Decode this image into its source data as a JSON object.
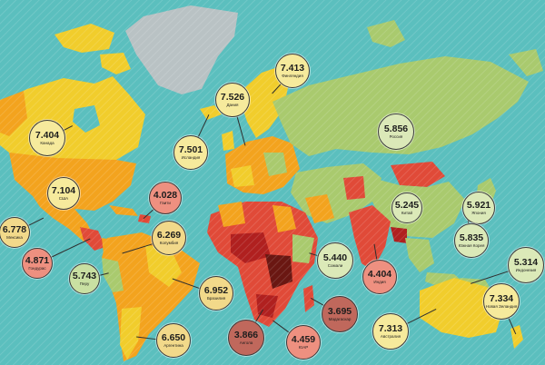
{
  "legend": {
    "title": "",
    "scale_min": 3.0,
    "scale_max": 7.6
  },
  "colors": {
    "ocean": "#5bbfbe",
    "greenland": "#b9c2c4",
    "happy_high": "#f1cd2c",
    "upper_mid": "#f3a31e",
    "mid": "#a9ca6e",
    "low_mid": "#e04a38",
    "low": "#b0201f",
    "lowest": "#6a1712"
  },
  "badges": [
    {
      "id": "canada",
      "value": "7.404",
      "label": "Канада",
      "fill": "#f6ea9c"
    },
    {
      "id": "usa",
      "value": "7.104",
      "label": "США",
      "fill": "#f6ea9c"
    },
    {
      "id": "mexico",
      "value": "6.778",
      "label": "Мексика",
      "fill": "#f2d98a"
    },
    {
      "id": "honduras",
      "value": "4.871",
      "label": "Гондурас",
      "fill": "#ee9080"
    },
    {
      "id": "peru",
      "value": "5.743",
      "label": "Перу",
      "fill": "#c9e0a2"
    },
    {
      "id": "haiti",
      "value": "4.028",
      "label": "Гаити",
      "fill": "#ee9080"
    },
    {
      "id": "colombia",
      "value": "6.269",
      "label": "Колумбия",
      "fill": "#f2d98a"
    },
    {
      "id": "brazil",
      "value": "6.952",
      "label": "Бразилия",
      "fill": "#f2d98a"
    },
    {
      "id": "argentina",
      "value": "6.650",
      "label": "Аргентина",
      "fill": "#f2d98a"
    },
    {
      "id": "iceland",
      "value": "7.501",
      "label": "Исландия",
      "fill": "#f6ea9c"
    },
    {
      "id": "denmark",
      "value": "7.526",
      "label": "Дания",
      "fill": "#f6ea9c"
    },
    {
      "id": "finland",
      "value": "7.413",
      "label": "Финляндия",
      "fill": "#f6ea9c"
    },
    {
      "id": "russia",
      "value": "5.856",
      "label": "Россия",
      "fill": "#dbe9b8"
    },
    {
      "id": "china",
      "value": "5.245",
      "label": "Китай",
      "fill": "#dbe9b8"
    },
    {
      "id": "japan",
      "value": "5.921",
      "label": "Япония",
      "fill": "#dbe9b8"
    },
    {
      "id": "south-korea",
      "value": "5.835",
      "label": "Южная Корея",
      "fill": "#dbe9b8"
    },
    {
      "id": "indonesia",
      "value": "5.314",
      "label": "Индонезия",
      "fill": "#dbe9b8"
    },
    {
      "id": "india",
      "value": "4.404",
      "label": "Индия",
      "fill": "#ee9080"
    },
    {
      "id": "somalia",
      "value": "5.440",
      "label": "Сомали",
      "fill": "#dbe9b8"
    },
    {
      "id": "madagascar",
      "value": "3.695",
      "label": "Мадагаскар",
      "fill": "#c0685c"
    },
    {
      "id": "angola",
      "value": "3.866",
      "label": "Ангола",
      "fill": "#c0685c"
    },
    {
      "id": "south-africa",
      "value": "4.459",
      "label": "ЮАР",
      "fill": "#ee9080"
    },
    {
      "id": "australia",
      "value": "7.313",
      "label": "Австралия",
      "fill": "#f6ea9c"
    },
    {
      "id": "new-zealand",
      "value": "7.334",
      "label": "Новая Зеландия",
      "fill": "#f6ea9c"
    }
  ]
}
